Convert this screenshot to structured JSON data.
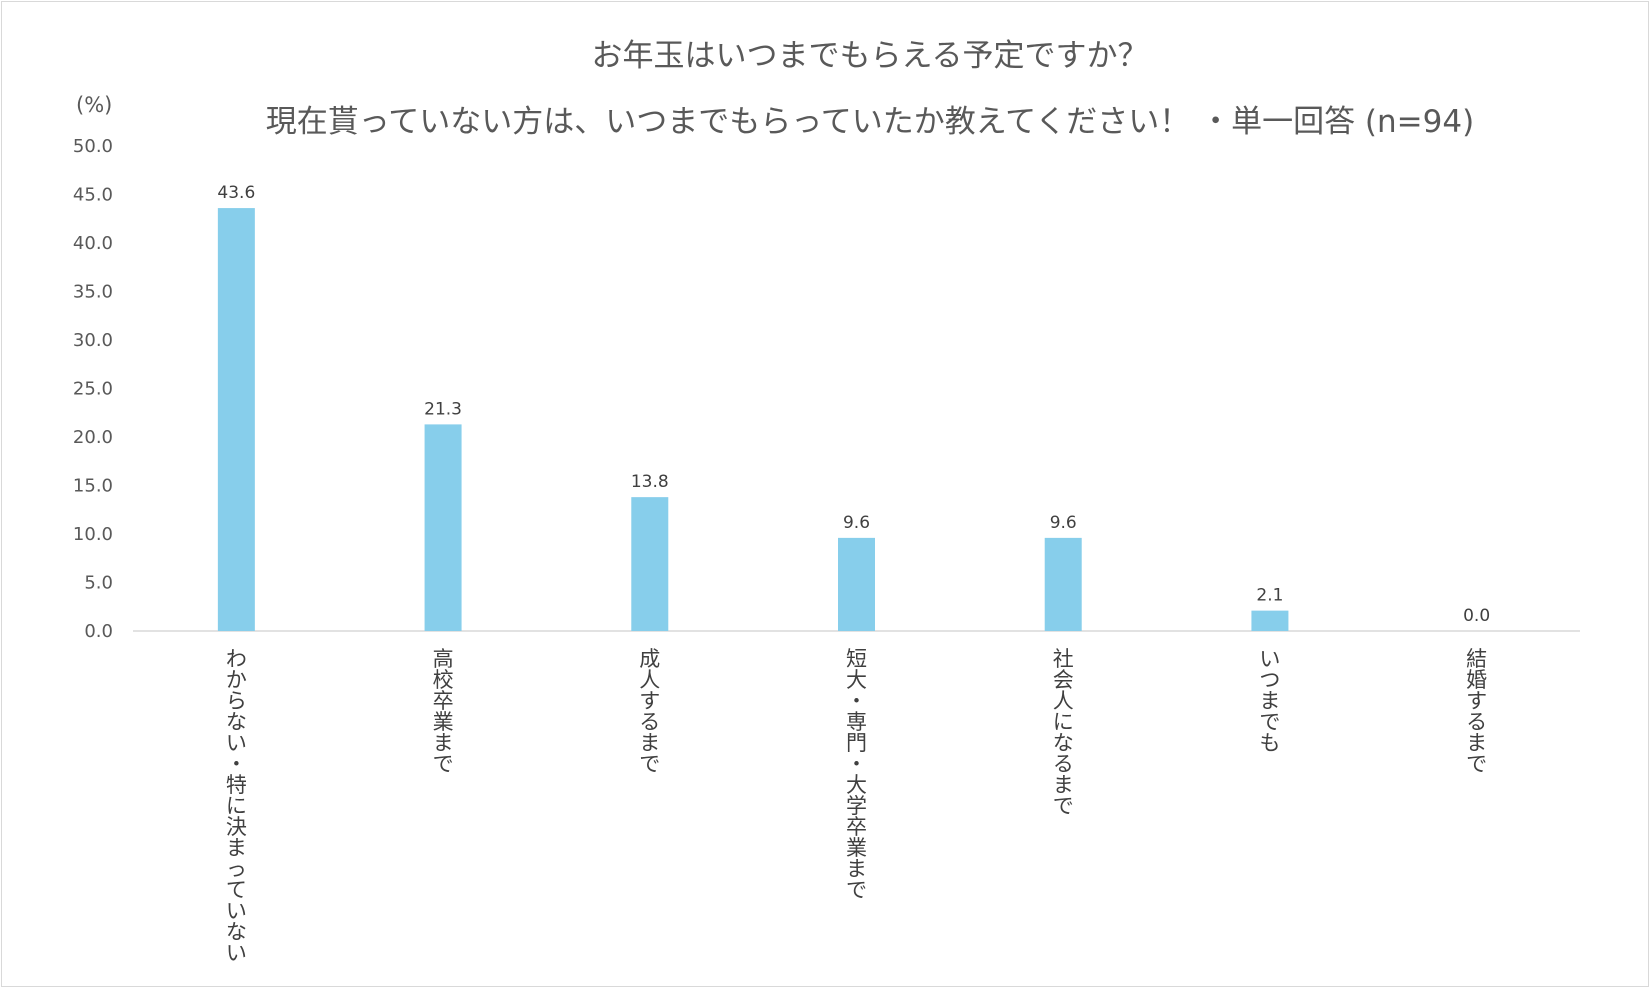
{
  "chart_data": {
    "type": "bar",
    "title": "お年玉はいつまでもらえる予定ですか？",
    "subtitle": "現在貰っていない方は、いつまでもらっていたか教えてください！ ・単一回答 (n=94)",
    "ylabel": "(%)",
    "xlabel": "",
    "ylim": [
      0,
      50
    ],
    "yticks": [
      "0.0",
      "5.0",
      "10.0",
      "15.0",
      "20.0",
      "25.0",
      "30.0",
      "35.0",
      "40.0",
      "45.0",
      "50.0"
    ],
    "grid": false,
    "categories": [
      "わからない・特に決まっていない",
      "高校卒業まで",
      "成人するまで",
      "短大・専門・大学卒業まで",
      "社会人になるまで",
      "いつまでも",
      "結婚するまで"
    ],
    "values": [
      43.6,
      21.3,
      13.8,
      9.6,
      9.6,
      2.1,
      0.0
    ],
    "value_labels": [
      "43.6",
      "21.3",
      "13.8",
      "9.6",
      "9.6",
      "2.1",
      "0.0"
    ],
    "bar_color": "#87ceeb",
    "axis_color": "#d9d9d9"
  }
}
